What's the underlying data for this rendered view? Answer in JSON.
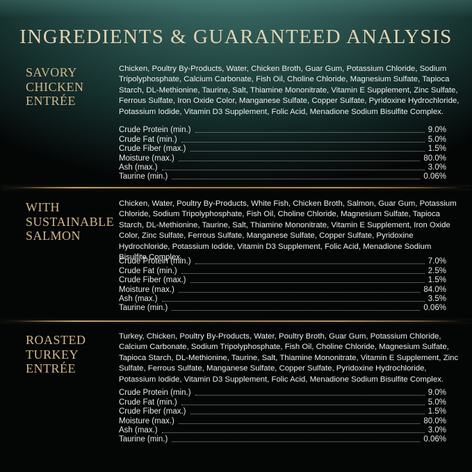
{
  "header": {
    "title": "INGREDIENTS & GUARANTEED ANALYSIS"
  },
  "sections": [
    {
      "name": "SAVORY\nCHICKEN\nENTRÉE",
      "ingredients": "Chicken, Poultry By-Products, Water, Chicken Broth, Guar Gum, Potassium Chloride, Sodium Tripolyphosphate, Calcium Carbonate, Fish Oil, Choline Chloride, Magnesium Sulfate, Tapioca Starch, DL-Methionine, Taurine, Salt, Thiamine Mononitrate, Vitamin E Supplement, Zinc Sulfate, Ferrous Sulfate, Iron Oxide Color, Manganese Sulfate, Copper Sulfate, Pyridoxine Hydrochloride, Potassium Iodide, Vitamin D3 Supplement, Folic Acid, Menadione Sodium Bisulfite Complex.",
      "analysis": [
        {
          "label": "Crude Protein (min.)",
          "value": "9.0%"
        },
        {
          "label": "Crude Fat (min.)",
          "value": "5.0%"
        },
        {
          "label": "Crude Fiber (max.)",
          "value": "1.5%"
        },
        {
          "label": "Moisture (max.)",
          "value": "80.0%"
        },
        {
          "label": "Ash (max.)",
          "value": "3.0%"
        },
        {
          "label": "Taurine (min.)",
          "value": "0.06%"
        }
      ]
    },
    {
      "name": "WITH\nSUSTAINABLE\nSALMON",
      "ingredients": "Chicken, Water, Poultry By-Products, White Fish, Chicken Broth, Salmon, Guar Gum, Potassium Chloride, Sodium Tripolyphosphate, Fish Oil, Choline Chloride, Magnesium Sulfate, Tapioca Starch, DL-Methionine, Taurine, Salt, Thiamine Mononitrate, Vitamin E Supplement, Iron Oxide Color, Zinc Sulfate, Ferrous Sulfate, Manganese Sulfate, Copper Sulfate, Pyridoxine Hydrochloride, Potassium Iodide, Vitamin D3 Supplement, Folic Acid, Menadione Sodium Bisulfite Complex.",
      "analysis": [
        {
          "label": "Crude Protein (min.)",
          "value": "7.0%"
        },
        {
          "label": "Crude Fat (min.)",
          "value": "2.5%"
        },
        {
          "label": "Crude Fiber (max.)",
          "value": "1.5%"
        },
        {
          "label": "Moisture (max.)",
          "value": "84.0%"
        },
        {
          "label": "Ash (max.)",
          "value": "3.5%"
        },
        {
          "label": "Taurine (min.)",
          "value": "0.06%"
        }
      ]
    },
    {
      "name": "ROASTED\nTURKEY\nENTRÉE",
      "ingredients": "Turkey, Chicken, Poultry By-Products, Water, Poultry Broth, Guar Gum, Potassium Chloride, Calcium Carbonate, Sodium Tripolyphosphate, Fish Oil, Choline Chloride, Magnesium Sulfate, Tapioca Starch, DL-Methionine, Taurine, Salt, Thiamine Mononitrate, Vitamin E Supplement, Zinc Sulfate, Ferrous Sulfate, Manganese Sulfate, Copper Sulfate, Pyridoxine Hydrochloride, Potassium Iodide, Vitamin D3 Supplement, Folic Acid, Menadione Sodium Bisulfite Complex.",
      "analysis": [
        {
          "label": "Crude Protein (min.)",
          "value": "9.0%"
        },
        {
          "label": "Crude Fat (min.)",
          "value": "5.0%"
        },
        {
          "label": "Crude Fiber (max.)",
          "value": "1.5%"
        },
        {
          "label": "Moisture (max.)",
          "value": "80.0%"
        },
        {
          "label": "Ash (max.)",
          "value": "3.0%"
        },
        {
          "label": "Taurine (min.)",
          "value": "0.06%"
        }
      ]
    }
  ],
  "colors": {
    "background": "#040606",
    "teal_glow": "#2b534f",
    "title_cream": "#e4d3b2",
    "accent_gold": "#d3b88c",
    "divider_gold": "#b4945f",
    "body_text": "#edf0ee"
  }
}
